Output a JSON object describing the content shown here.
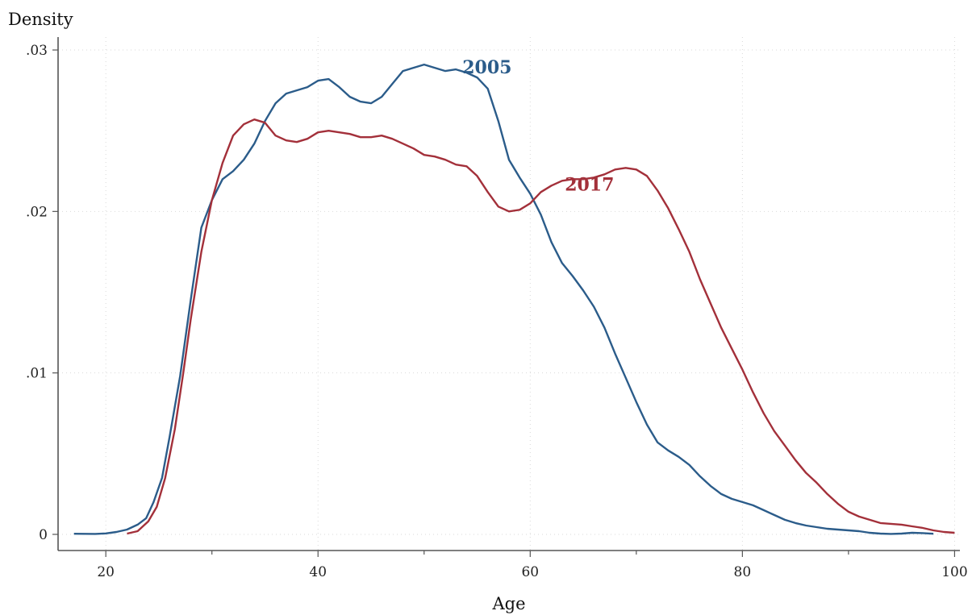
{
  "chart_data": {
    "type": "line",
    "ylabel": "Density",
    "xlabel": "Age",
    "xlim": [
      15.5,
      100.5
    ],
    "ylim": [
      -0.001,
      0.0308
    ],
    "x_ticks": [
      20,
      40,
      60,
      80,
      100
    ],
    "x_tick_labels": [
      "20",
      "40",
      "60",
      "80",
      "100"
    ],
    "y_ticks": [
      0,
      0.01,
      0.02,
      0.03
    ],
    "y_tick_labels": [
      "0",
      ".01",
      ".02",
      ".03"
    ],
    "grid": true,
    "series": [
      {
        "name": "2005",
        "color": "#2b5c8a",
        "points": [
          [
            17,
            4e-05
          ],
          [
            19,
            3e-05
          ],
          [
            20,
            6e-05
          ],
          [
            21,
            0.00015
          ],
          [
            22,
            0.0003
          ],
          [
            23,
            0.0006
          ],
          [
            23.8,
            0.001
          ],
          [
            24.5,
            0.002
          ],
          [
            25.3,
            0.0035
          ],
          [
            26,
            0.006
          ],
          [
            27,
            0.0098
          ],
          [
            28,
            0.0145
          ],
          [
            29,
            0.019
          ],
          [
            30,
            0.0207
          ],
          [
            31,
            0.022
          ],
          [
            32,
            0.0225
          ],
          [
            33,
            0.0232
          ],
          [
            34,
            0.0242
          ],
          [
            35,
            0.0256
          ],
          [
            36,
            0.0267
          ],
          [
            37,
            0.0273
          ],
          [
            38,
            0.0275
          ],
          [
            39,
            0.0277
          ],
          [
            40,
            0.0281
          ],
          [
            41,
            0.0282
          ],
          [
            42,
            0.0277
          ],
          [
            43,
            0.0271
          ],
          [
            44,
            0.0268
          ],
          [
            45,
            0.0267
          ],
          [
            46,
            0.0271
          ],
          [
            47,
            0.0279
          ],
          [
            48,
            0.0287
          ],
          [
            49,
            0.0289
          ],
          [
            50,
            0.0291
          ],
          [
            51,
            0.0289
          ],
          [
            52,
            0.0287
          ],
          [
            53,
            0.0288
          ],
          [
            54,
            0.0286
          ],
          [
            55,
            0.0283
          ],
          [
            56,
            0.0276
          ],
          [
            57,
            0.0256
          ],
          [
            58,
            0.0232
          ],
          [
            59,
            0.0221
          ],
          [
            60,
            0.0211
          ],
          [
            61,
            0.0198
          ],
          [
            62,
            0.0181
          ],
          [
            63,
            0.0168
          ],
          [
            64,
            0.016
          ],
          [
            65,
            0.0151
          ],
          [
            66,
            0.0141
          ],
          [
            67,
            0.0128
          ],
          [
            68,
            0.0112
          ],
          [
            69,
            0.0097
          ],
          [
            70,
            0.0082
          ],
          [
            71,
            0.0068
          ],
          [
            72,
            0.0057
          ],
          [
            73,
            0.0052
          ],
          [
            74,
            0.0048
          ],
          [
            75,
            0.0043
          ],
          [
            76,
            0.0036
          ],
          [
            77,
            0.003
          ],
          [
            78,
            0.0025
          ],
          [
            79,
            0.0022
          ],
          [
            80,
            0.002
          ],
          [
            81,
            0.0018
          ],
          [
            82,
            0.0015
          ],
          [
            83,
            0.0012
          ],
          [
            84,
            0.0009
          ],
          [
            85,
            0.0007
          ],
          [
            86,
            0.00055
          ],
          [
            87,
            0.00045
          ],
          [
            88,
            0.00035
          ],
          [
            89,
            0.0003
          ],
          [
            90,
            0.00025
          ],
          [
            91,
            0.0002
          ],
          [
            92,
            0.0001
          ],
          [
            93,
            5e-05
          ],
          [
            94,
            3e-05
          ],
          [
            95,
            5e-05
          ],
          [
            96,
            0.0001
          ],
          [
            97,
            8e-05
          ],
          [
            98,
            4e-05
          ]
        ]
      },
      {
        "name": "2017",
        "color": "#a3303a",
        "points": [
          [
            22,
            5e-05
          ],
          [
            23,
            0.0002
          ],
          [
            24,
            0.0008
          ],
          [
            24.8,
            0.0017
          ],
          [
            25.6,
            0.0035
          ],
          [
            26.5,
            0.0065
          ],
          [
            27.3,
            0.01
          ],
          [
            28,
            0.0133
          ],
          [
            29,
            0.0175
          ],
          [
            30,
            0.0207
          ],
          [
            31,
            0.023
          ],
          [
            32,
            0.0247
          ],
          [
            33,
            0.0254
          ],
          [
            34,
            0.0257
          ],
          [
            35,
            0.0255
          ],
          [
            36,
            0.0247
          ],
          [
            37,
            0.0244
          ],
          [
            38,
            0.0243
          ],
          [
            39,
            0.0245
          ],
          [
            40,
            0.0249
          ],
          [
            41,
            0.025
          ],
          [
            42,
            0.0249
          ],
          [
            43,
            0.0248
          ],
          [
            44,
            0.0246
          ],
          [
            45,
            0.0246
          ],
          [
            46,
            0.0247
          ],
          [
            47,
            0.0245
          ],
          [
            48,
            0.0242
          ],
          [
            49,
            0.0239
          ],
          [
            50,
            0.0235
          ],
          [
            51,
            0.0234
          ],
          [
            52,
            0.0232
          ],
          [
            53,
            0.0229
          ],
          [
            54,
            0.0228
          ],
          [
            55,
            0.0222
          ],
          [
            56,
            0.0212
          ],
          [
            57,
            0.0203
          ],
          [
            58,
            0.02
          ],
          [
            59,
            0.0201
          ],
          [
            60,
            0.0205
          ],
          [
            61,
            0.0212
          ],
          [
            62,
            0.0216
          ],
          [
            63,
            0.0219
          ],
          [
            64,
            0.022
          ],
          [
            65,
            0.022
          ],
          [
            66,
            0.0221
          ],
          [
            67,
            0.0223
          ],
          [
            68,
            0.0226
          ],
          [
            69,
            0.0227
          ],
          [
            70,
            0.0226
          ],
          [
            71,
            0.0222
          ],
          [
            72,
            0.0213
          ],
          [
            73,
            0.0202
          ],
          [
            74,
            0.0189
          ],
          [
            75,
            0.0175
          ],
          [
            76,
            0.0158
          ],
          [
            77,
            0.0143
          ],
          [
            78,
            0.0128
          ],
          [
            79,
            0.0115
          ],
          [
            80,
            0.0102
          ],
          [
            81,
            0.0088
          ],
          [
            82,
            0.0075
          ],
          [
            83,
            0.0064
          ],
          [
            84,
            0.0055
          ],
          [
            85,
            0.0046
          ],
          [
            86,
            0.0038
          ],
          [
            87,
            0.0032
          ],
          [
            88,
            0.0025
          ],
          [
            89,
            0.0019
          ],
          [
            90,
            0.0014
          ],
          [
            91,
            0.0011
          ],
          [
            92,
            0.0009
          ],
          [
            93,
            0.0007
          ],
          [
            94,
            0.00065
          ],
          [
            95,
            0.0006
          ],
          [
            96,
            0.0005
          ],
          [
            97,
            0.0004
          ],
          [
            98,
            0.00025
          ],
          [
            99,
            0.00015
          ],
          [
            100,
            0.0001
          ]
        ]
      }
    ],
    "annotations": [
      {
        "text": "2005",
        "series": "2005"
      },
      {
        "text": "2017",
        "series": "2017"
      }
    ]
  }
}
